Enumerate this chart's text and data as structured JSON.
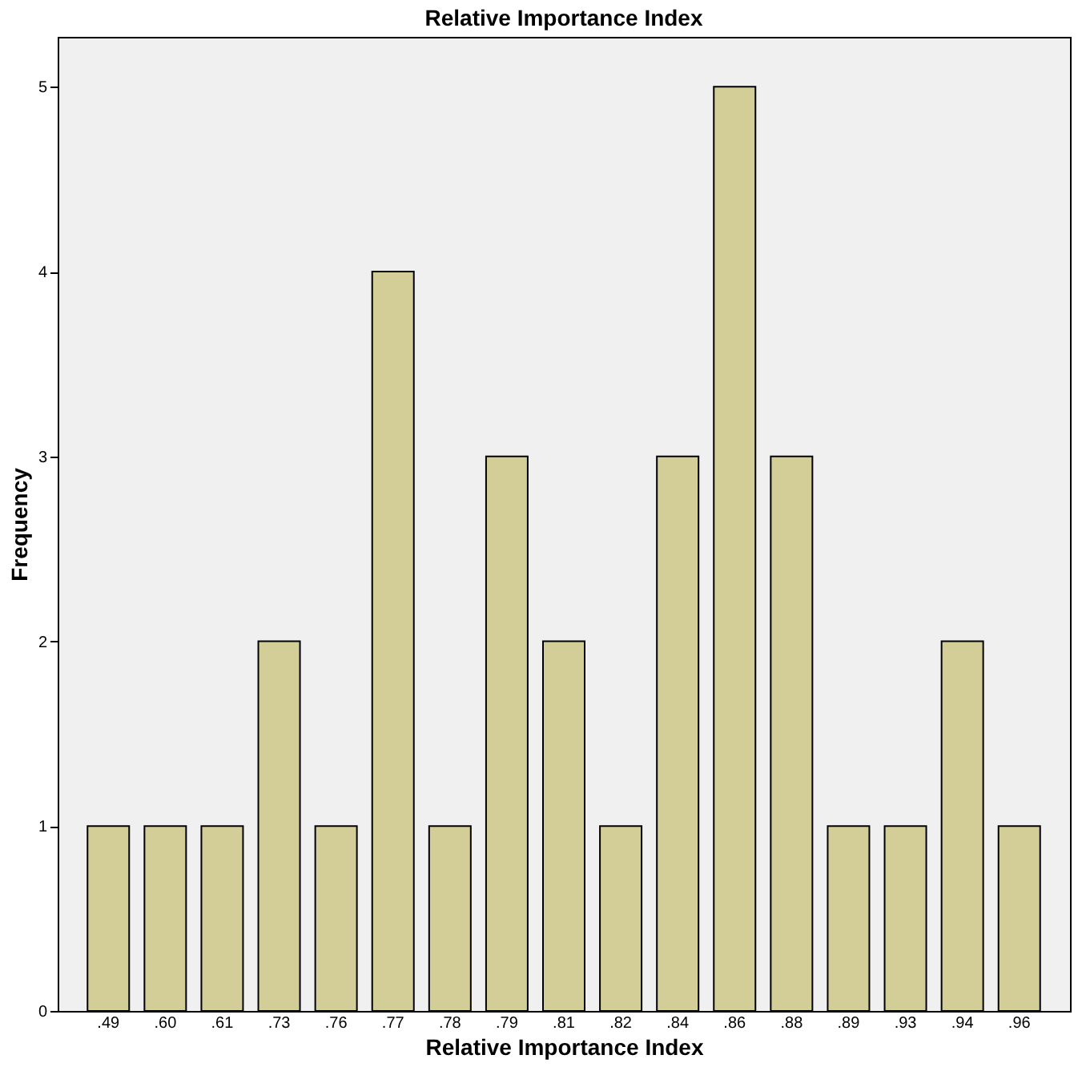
{
  "chart_data": {
    "type": "bar",
    "title": "Relative Importance Index",
    "xlabel": "Relative Importance Index",
    "ylabel": "Frequency",
    "categories": [
      ".49",
      ".60",
      ".61",
      ".73",
      ".76",
      ".77",
      ".78",
      ".79",
      ".81",
      ".82",
      ".84",
      ".86",
      ".88",
      ".89",
      ".93",
      ".94",
      ".96"
    ],
    "values": [
      1,
      1,
      1,
      2,
      1,
      4,
      1,
      3,
      2,
      1,
      3,
      5,
      3,
      1,
      1,
      2,
      1
    ],
    "color": "#d3ce97",
    "ylim": [
      0,
      5.27
    ],
    "yticks": [
      0,
      1,
      2,
      3,
      4,
      5
    ],
    "grid": false
  }
}
